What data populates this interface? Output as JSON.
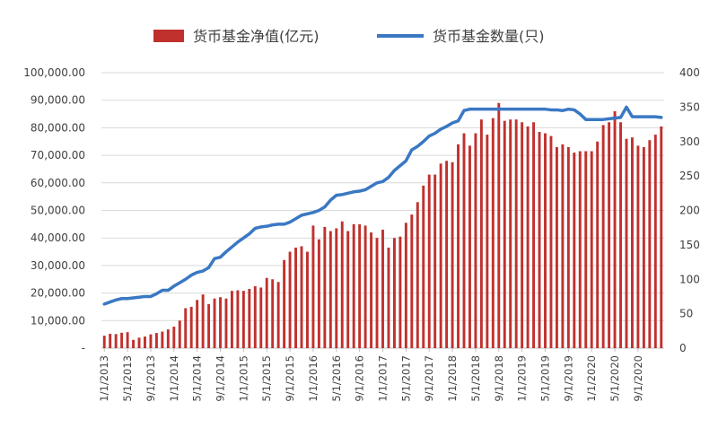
{
  "chart_data": {
    "type": "bar",
    "colors": {
      "bars": "#c0312e",
      "line": "#3a78c3",
      "grid": "#d9d9d9",
      "text": "#404040"
    },
    "legend": {
      "placement": "top-center",
      "entries": [
        "货币基金净值(亿元)",
        "货币基金数量(只)"
      ]
    },
    "grid": true,
    "y_left": {
      "ylim": [
        0,
        100000
      ],
      "ticks": [
        0,
        10000,
        20000,
        30000,
        40000,
        50000,
        60000,
        70000,
        80000,
        90000,
        100000
      ],
      "tick_labels": [
        "-",
        "10,000.00",
        "20,000.00",
        "30,000.00",
        "40,000.00",
        "50,000.00",
        "60,000.00",
        "70,000.00",
        "80,000.00",
        "90,000.00",
        "100,000.00"
      ]
    },
    "y_right": {
      "ylim": [
        0,
        400
      ],
      "ticks": [
        0,
        50,
        100,
        150,
        200,
        250,
        300,
        350,
        400
      ],
      "tick_labels": [
        "0",
        "50",
        "100",
        "150",
        "200",
        "250",
        "300",
        "350",
        "400"
      ]
    },
    "x_tick_labels": [
      "1/1/2013",
      "5/1/2013",
      "9/1/2013",
      "1/1/2014",
      "5/1/2014",
      "9/1/2014",
      "1/1/2015",
      "5/1/2015",
      "9/1/2015",
      "1/1/2016",
      "5/1/2016",
      "9/1/2016",
      "1/1/2017",
      "5/1/2017",
      "9/1/2017",
      "1/1/2018",
      "5/1/2018",
      "9/1/2018",
      "1/1/2019",
      "5/1/2019",
      "9/1/2019",
      "1/1/2020",
      "5/1/2020",
      "9/1/2020"
    ],
    "x_tick_every": 4,
    "series": [
      {
        "name": "货币基金净值(亿元)",
        "type": "bar",
        "axis": "left",
        "values": [
          4500,
          5200,
          5100,
          5600,
          5800,
          3000,
          3800,
          4200,
          5000,
          5500,
          6000,
          6800,
          7800,
          10000,
          14500,
          15000,
          17500,
          19500,
          16000,
          18000,
          18500,
          18000,
          20800,
          21000,
          20800,
          21500,
          22500,
          22000,
          25500,
          25000,
          24000,
          32000,
          35000,
          36500,
          37000,
          35000,
          44500,
          39500,
          44000,
          42500,
          43500,
          46000,
          42500,
          45000,
          45000,
          44500,
          42000,
          40000,
          43000,
          36500,
          40000,
          40500,
          45500,
          48500,
          53000,
          59000,
          63000,
          63000,
          67000,
          68000,
          67500,
          74000,
          78000,
          73500,
          78000,
          83000,
          77500,
          83500,
          89000,
          82500,
          83000,
          83000,
          82000,
          80500,
          82000,
          78500,
          78000,
          77000,
          73000,
          74000,
          73000,
          71000,
          71500,
          71500,
          71500,
          75000,
          81000,
          82000,
          86000,
          82000,
          76000,
          76500,
          73500,
          73000,
          75500,
          77500,
          80500
        ]
      },
      {
        "name": "货币基金数量(只)",
        "type": "line",
        "axis": "right",
        "values": [
          64,
          67,
          70,
          72,
          72,
          73,
          74,
          75,
          75,
          79,
          84,
          84,
          90,
          95,
          100,
          106,
          110,
          112,
          117,
          130,
          132,
          140,
          147,
          154,
          160,
          166,
          174,
          176,
          177,
          179,
          180,
          180,
          183,
          188,
          193,
          195,
          197,
          200,
          205,
          215,
          222,
          223,
          225,
          227,
          228,
          230,
          235,
          240,
          242,
          248,
          258,
          265,
          272,
          288,
          293,
          300,
          308,
          312,
          318,
          322,
          327,
          330,
          345,
          347,
          347,
          347,
          347,
          347,
          347,
          347,
          347,
          347,
          347,
          347,
          347,
          347,
          347,
          346,
          346,
          345,
          347,
          346,
          340,
          332,
          332,
          332,
          332,
          333,
          334,
          335,
          350,
          336,
          336,
          336,
          336,
          336,
          335
        ]
      }
    ]
  }
}
